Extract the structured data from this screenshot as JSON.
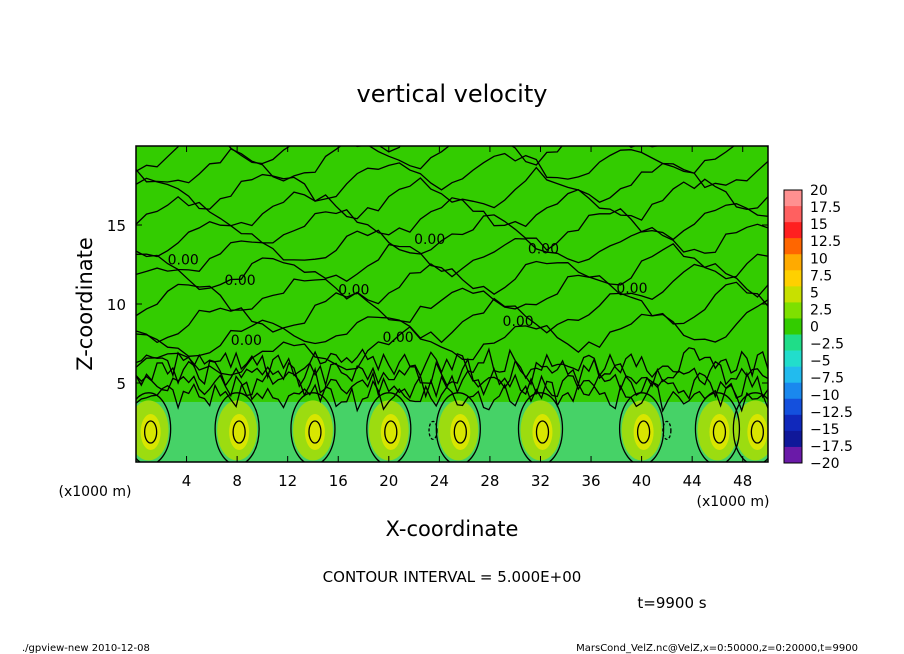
{
  "chart_data": {
    "type": "heatmap",
    "title": "vertical velocity",
    "xlabel": "X-coordinate",
    "ylabel": "Z-coordinate",
    "x_unit": "(x1000 m)",
    "y_unit": "(x1000 m)",
    "xlim": [
      0,
      50
    ],
    "ylim": [
      0,
      20
    ],
    "x_ticks": [
      4,
      8,
      12,
      16,
      20,
      24,
      28,
      32,
      36,
      40,
      44,
      48
    ],
    "y_ticks": [
      5,
      10,
      15
    ],
    "x_tick_labels": [
      "4",
      "8",
      "12",
      "16",
      "20",
      "24",
      "28",
      "32",
      "36",
      "40",
      "44",
      "48"
    ],
    "y_tick_labels": [
      "5",
      "10",
      "15"
    ],
    "contour_labels": [
      "0.00",
      "0.00",
      "0.00",
      "0.00",
      "0.00",
      "0.00",
      "0.00",
      "0.00",
      "0.00"
    ],
    "contour_interval": "CONTOUR INTERVAL = 5.000E+00",
    "time": "t=9900 s",
    "colorbar": {
      "labels": [
        "20",
        "17.5",
        "15",
        "12.5",
        "10",
        "7.5",
        "5",
        "2.5",
        "0",
        "−2.5",
        "−5",
        "−7.5",
        "−10",
        "−12.5",
        "−15",
        "−17.5",
        "−20"
      ],
      "colors": [
        "#ff9090",
        "#ff6060",
        "#ff2020",
        "#ff6600",
        "#ffaa00",
        "#ffd000",
        "#c8e000",
        "#7ee000",
        "#33cc00",
        "#1fdd88",
        "#22ddcc",
        "#22bbee",
        "#1a88ee",
        "#1450dd",
        "#1028bb",
        "#101899",
        "#6a1aa8"
      ]
    },
    "updraft_x": [
      1,
      8,
      14,
      20,
      25.5,
      32,
      40,
      46,
      49
    ]
  },
  "footer": {
    "left": "./gpview-new  2010-12-08",
    "right": "MarsCond_VelZ.nc@VelZ,x=0:50000,z=0:20000,t=9900"
  }
}
